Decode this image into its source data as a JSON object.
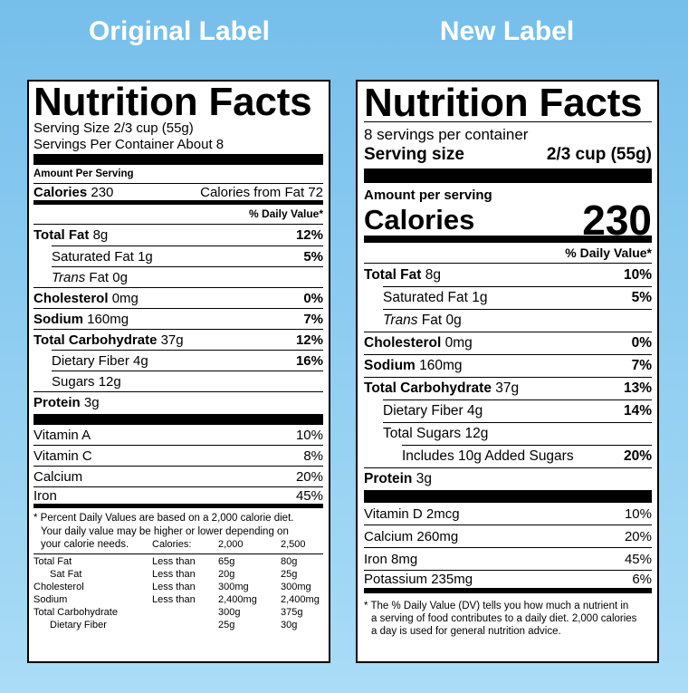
{
  "headings": {
    "original": "Original Label",
    "new": "New Label"
  },
  "original_label": {
    "title": "Nutrition Facts",
    "serving_size": "Serving Size 2/3 cup (55g)",
    "servings_per_container": "Servings Per Container About 8",
    "amount_per_serving": "Amount Per Serving",
    "calories": {
      "label": "Calories",
      "value": 230,
      "from_fat": "Calories from Fat 72"
    },
    "daily_value_header": "% Daily Value*",
    "nutrients": [
      {
        "name": "Total Fat",
        "amount": "8g",
        "dv": "12%",
        "sub": [
          {
            "name": "Saturated Fat",
            "amount": "1g",
            "dv": "5%"
          },
          {
            "prefix": "Trans",
            "name": "Fat",
            "amount": "0g"
          }
        ]
      },
      {
        "name": "Cholesterol",
        "amount": "0mg",
        "dv": "0%"
      },
      {
        "name": "Sodium",
        "amount": "160mg",
        "dv": "7%"
      },
      {
        "name": "Total Carbohydrate",
        "amount": "37g",
        "dv": "12%",
        "sub": [
          {
            "name": "Dietary Fiber",
            "amount": "4g",
            "dv": "16%"
          },
          {
            "name": "Sugars",
            "amount": "12g"
          }
        ]
      },
      {
        "name": "Protein",
        "amount": "3g"
      }
    ],
    "vitamins": [
      {
        "name": "Vitamin A",
        "dv": "10%"
      },
      {
        "name": "Vitamin C",
        "dv": "8%"
      },
      {
        "name": "Calcium",
        "dv": "20%"
      },
      {
        "name": "Iron",
        "dv": "45%"
      }
    ],
    "footnote": [
      "* Percent Daily Values are based on a 2,000 calorie diet.",
      "Your daily value may be higher or lower depending on",
      "your calorie needs."
    ],
    "table": {
      "header": {
        "label": "Calories:",
        "values": [
          "2,000",
          "2,500"
        ]
      },
      "rows": [
        {
          "name": "Total Fat",
          "limit": "Less than",
          "values": [
            "65g",
            "80g"
          ],
          "sub": [
            {
              "name": "Sat Fat",
              "limit": "Less than",
              "values": [
                "20g",
                "25g"
              ]
            }
          ]
        },
        {
          "name": "Cholesterol",
          "limit": "Less than",
          "values": [
            "300mg",
            "300mg"
          ]
        },
        {
          "name": "Sodium",
          "limit": "Less than",
          "values": [
            "2,400mg",
            "2,400mg"
          ]
        },
        {
          "name": "Total Carbohydrate",
          "values": [
            "300g",
            "375g"
          ],
          "sub": [
            {
              "name": "Dietary Fiber",
              "values": [
                "25g",
                "30g"
              ]
            }
          ]
        }
      ]
    }
  },
  "new_label": {
    "title": "Nutrition Facts",
    "servings_per_container": "8 servings per container",
    "serving_size": {
      "label": "Serving size",
      "value": "2/3 cup (55g)"
    },
    "amount_per_serving": "Amount per serving",
    "calories": {
      "label": "Calories",
      "value": 230
    },
    "daily_value_header": "% Daily Value*",
    "nutrients": [
      {
        "name": "Total Fat",
        "amount": "8g",
        "dv": "10%",
        "sub": [
          {
            "name": "Saturated Fat",
            "amount": "1g",
            "dv": "5%"
          },
          {
            "prefix": "Trans",
            "name": "Fat",
            "amount": "0g"
          }
        ]
      },
      {
        "name": "Cholesterol",
        "amount": "0mg",
        "dv": "0%"
      },
      {
        "name": "Sodium",
        "amount": "160mg",
        "dv": "7%"
      },
      {
        "name": "Total Carbohydrate",
        "amount": "37g",
        "dv": "13%",
        "sub": [
          {
            "name": "Dietary Fiber",
            "amount": "4g",
            "dv": "14%"
          },
          {
            "name": "Total Sugars",
            "amount": "12g",
            "sub": [
              {
                "name": "Includes 10g Added Sugars",
                "dv": "20%"
              }
            ]
          }
        ]
      },
      {
        "name": "Protein",
        "amount": "3g"
      }
    ],
    "vitamins": [
      {
        "name": "Vitamin D",
        "amount": "2mcg",
        "dv": "10%"
      },
      {
        "name": "Calcium",
        "amount": "260mg",
        "dv": "20%"
      },
      {
        "name": "Iron",
        "amount": "8mg",
        "dv": "45%"
      },
      {
        "name": "Potassium",
        "amount": "235mg",
        "dv": "6%"
      }
    ],
    "footnote": [
      "* The % Daily Value (DV) tells you how much a nutrient in",
      "a serving of food contributes to a daily diet. 2,000 calories",
      "a day is used for general nutrition advice."
    ]
  }
}
